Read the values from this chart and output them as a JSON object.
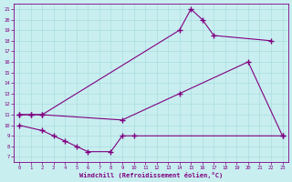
{
  "xlabel": "Windchill (Refroidissement éolien,°C)",
  "xlim": [
    -0.5,
    23.5
  ],
  "ylim": [
    6.5,
    21.5
  ],
  "xticks": [
    0,
    1,
    2,
    3,
    4,
    5,
    6,
    7,
    8,
    9,
    10,
    11,
    12,
    13,
    14,
    15,
    16,
    17,
    18,
    19,
    20,
    21,
    22,
    23
  ],
  "yticks": [
    7,
    8,
    9,
    10,
    11,
    12,
    13,
    14,
    15,
    16,
    17,
    18,
    19,
    20,
    21
  ],
  "line_color": "#800080",
  "bg_color": "#c8eef0",
  "grid_color": "#aadddf",
  "line1_x": [
    0,
    1,
    2,
    14,
    15,
    16,
    17,
    22
  ],
  "line1_y": [
    11,
    11,
    11,
    19,
    21,
    20,
    18.5,
    18
  ],
  "line2_x": [
    0,
    1,
    2,
    9,
    14,
    20,
    23
  ],
  "line2_y": [
    11,
    11,
    11,
    10.5,
    13,
    16,
    9
  ],
  "line3_x": [
    0,
    2,
    3,
    4,
    5,
    6,
    8,
    9,
    10,
    23
  ],
  "line3_y": [
    10,
    9.5,
    9,
    8.5,
    8,
    7.5,
    7.5,
    9,
    9,
    9
  ]
}
